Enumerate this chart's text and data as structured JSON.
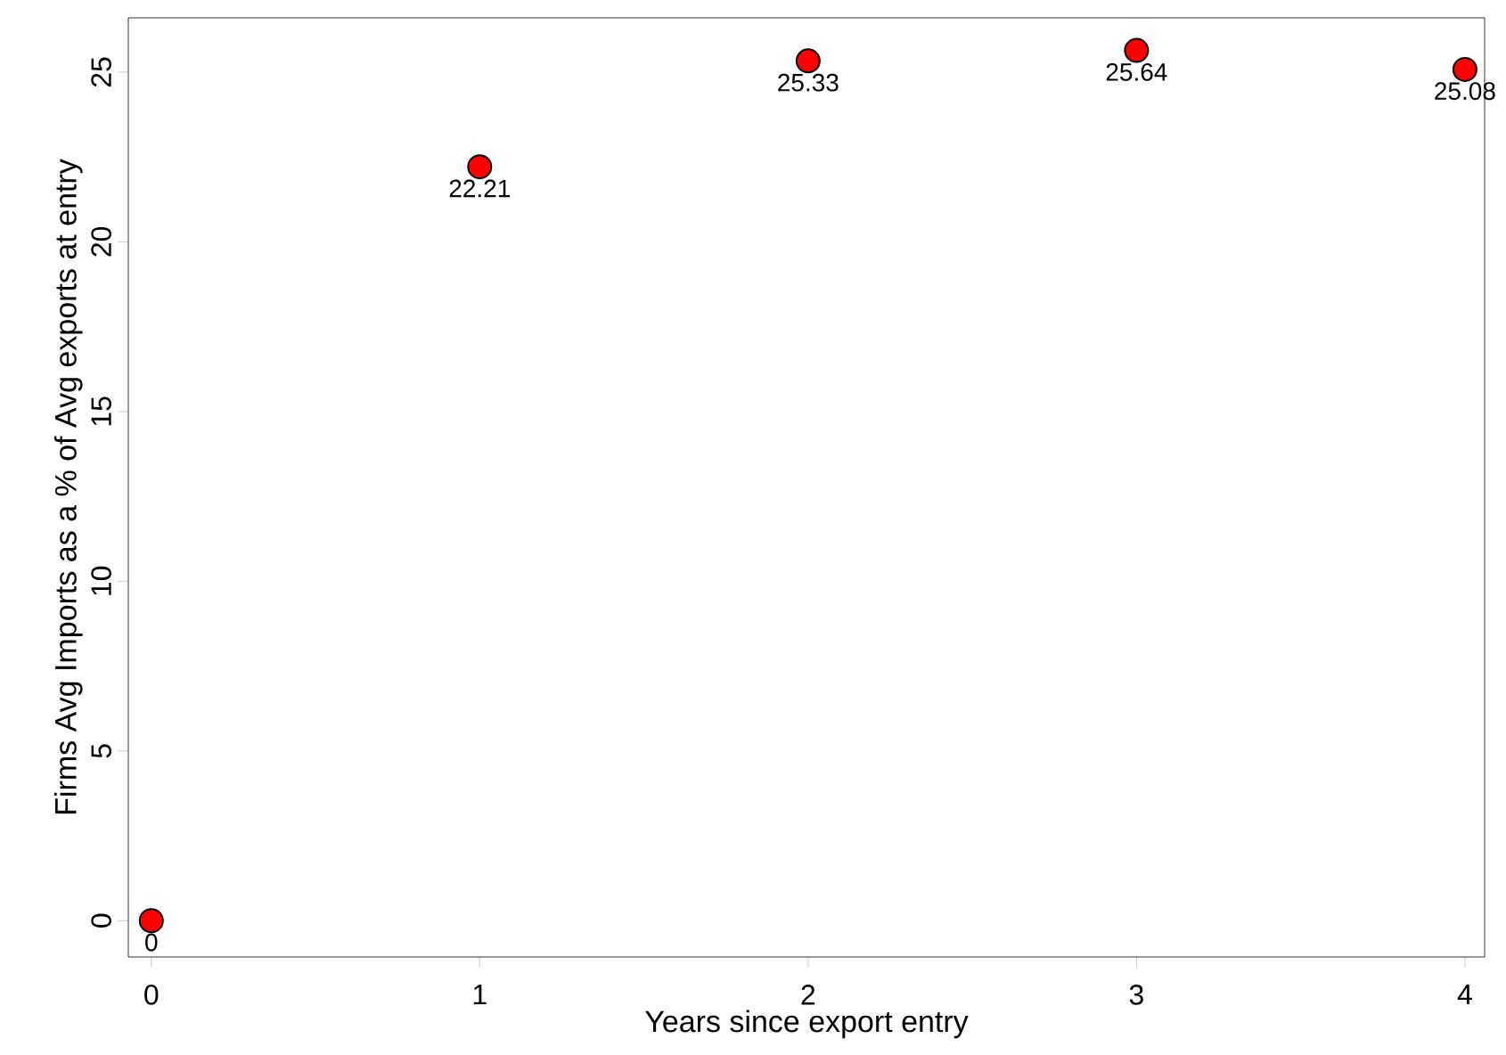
{
  "chart_data": {
    "type": "scatter",
    "xlabel": "Years since export entry",
    "ylabel": "Firms Avg Imports as a % of Avg exports at entry",
    "x": [
      0,
      1,
      2,
      3,
      4
    ],
    "values": [
      0,
      22.21,
      25.33,
      25.64,
      25.08
    ],
    "color": "#ff0000",
    "marker": "circle",
    "data_labels": true,
    "xlim": [
      -0.07,
      4.06
    ],
    "ylim": [
      -1.07,
      26.6
    ],
    "xticks": [
      0,
      1,
      2,
      3,
      4
    ],
    "yticks": [
      0,
      5,
      10,
      15,
      20,
      25
    ],
    "grid": false
  }
}
